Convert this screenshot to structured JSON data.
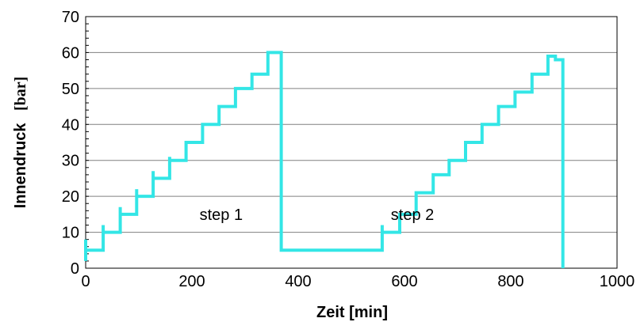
{
  "chart_data": {
    "type": "line",
    "title": "",
    "xlabel": "Zeit [min]",
    "ylabel": "Innendruck",
    "ylabel_unit": "[bar]",
    "xlim": [
      0,
      1000
    ],
    "ylim": [
      0,
      70
    ],
    "x_ticks": [
      0,
      200,
      400,
      600,
      800,
      1000
    ],
    "y_ticks": [
      0,
      10,
      20,
      30,
      40,
      50,
      60,
      70
    ],
    "grid": "horizontal",
    "legend": "none",
    "annotations": [
      {
        "text": "step 1",
        "x": 255,
        "y": 15
      },
      {
        "text": "step 2",
        "x": 615,
        "y": 15
      }
    ],
    "series": [
      {
        "color": "#33e6e6",
        "x": [
          0,
          0,
          0,
          33,
          33,
          33,
          65,
          65,
          65,
          96,
          96,
          96,
          127,
          127,
          127,
          158,
          158,
          158,
          189,
          189,
          220,
          220,
          251,
          251,
          282,
          282,
          313,
          313,
          343,
          343,
          368,
          368,
          558,
          558,
          558,
          591,
          591,
          622,
          622,
          654,
          654,
          684,
          684,
          715,
          715,
          746,
          746,
          777,
          777,
          808,
          808,
          840,
          840,
          870,
          870,
          884,
          884,
          898,
          898
        ],
        "y": [
          2,
          8,
          5,
          5,
          12,
          10,
          10,
          17,
          15,
          15,
          22,
          20,
          20,
          27,
          25,
          25,
          31,
          30,
          30,
          35,
          35,
          40,
          40,
          45,
          45,
          50,
          50,
          54,
          54,
          60,
          60,
          5,
          5,
          12,
          10,
          10,
          15,
          15,
          21,
          21,
          26,
          26,
          30,
          30,
          35,
          35,
          40,
          40,
          45,
          45,
          49,
          49,
          54,
          54,
          59,
          59,
          58,
          58,
          0
        ]
      }
    ]
  }
}
